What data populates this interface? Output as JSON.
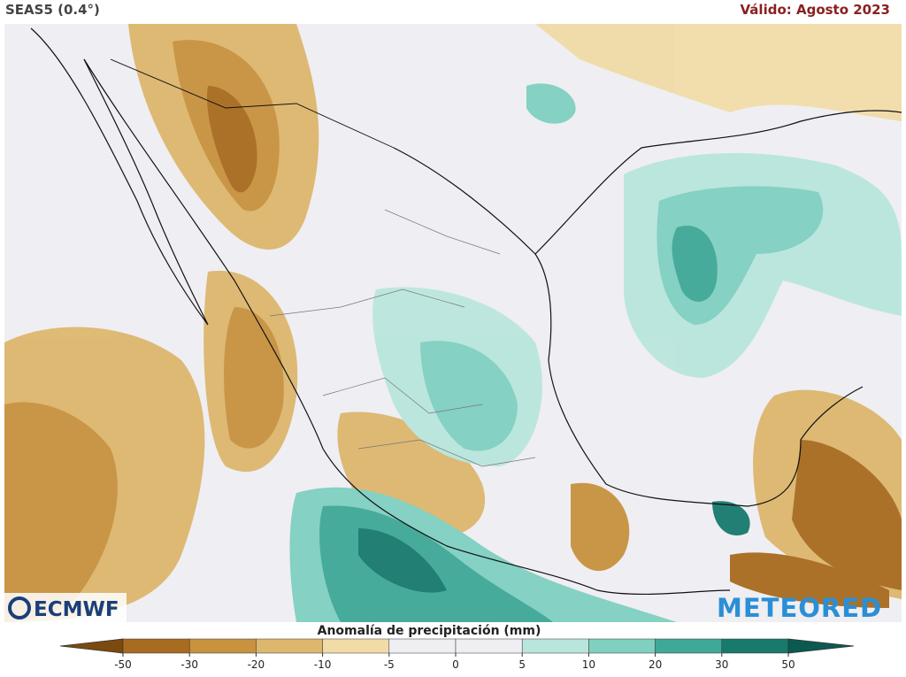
{
  "header": {
    "model": "SEAS5 (0.4°)",
    "valid": "Válido: Agosto 2023"
  },
  "legend": {
    "title": "Anomalía de precipitación (mm)",
    "ticks": [
      -50,
      -30,
      -20,
      -10,
      -5,
      0,
      5,
      10,
      20,
      30,
      50
    ],
    "colors": [
      "#7a4a0e",
      "#a86b1f",
      "#c8923e",
      "#ddb76e",
      "#f1dca8",
      "#efeef3",
      "#efeef3",
      "#b9e6dc",
      "#80d0c1",
      "#3fa898",
      "#187a6d",
      "#0b5a50"
    ]
  },
  "logos": {
    "left": "ECMWF",
    "right": "METEORED"
  }
}
